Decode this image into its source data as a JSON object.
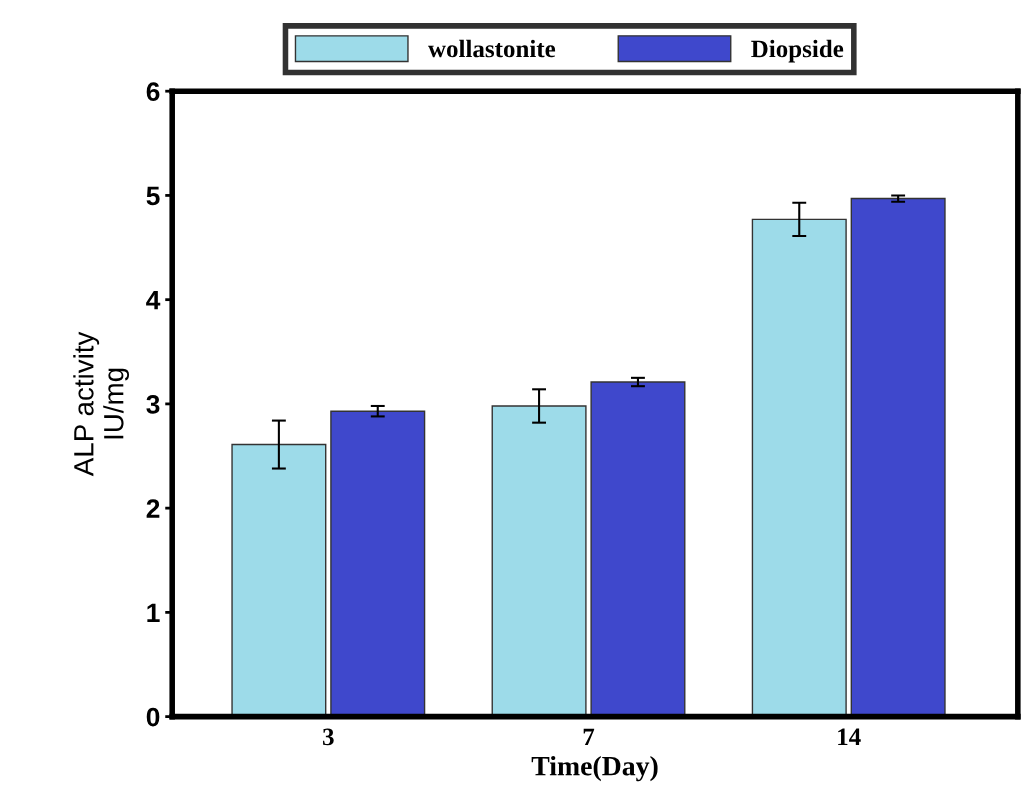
{
  "chart_data": {
    "type": "bar",
    "xlabel": "Time(Day)",
    "ylabel": "ALP activity\nIU/mg",
    "categories": [
      "3",
      "7",
      "14"
    ],
    "series": [
      {
        "name": "wollastonite",
        "color": "#9ddbe9",
        "values": [
          2.61,
          2.98,
          4.77
        ],
        "errors": [
          0.23,
          0.16,
          0.16
        ]
      },
      {
        "name": "Diopside",
        "color": "#3f48cc",
        "values": [
          2.93,
          3.21,
          4.97
        ],
        "errors": [
          0.05,
          0.04,
          0.03
        ]
      }
    ],
    "ylim": [
      0,
      6
    ],
    "yticks": [
      0,
      1,
      2,
      3,
      4,
      5,
      6
    ],
    "grid": false,
    "legend": "top"
  }
}
